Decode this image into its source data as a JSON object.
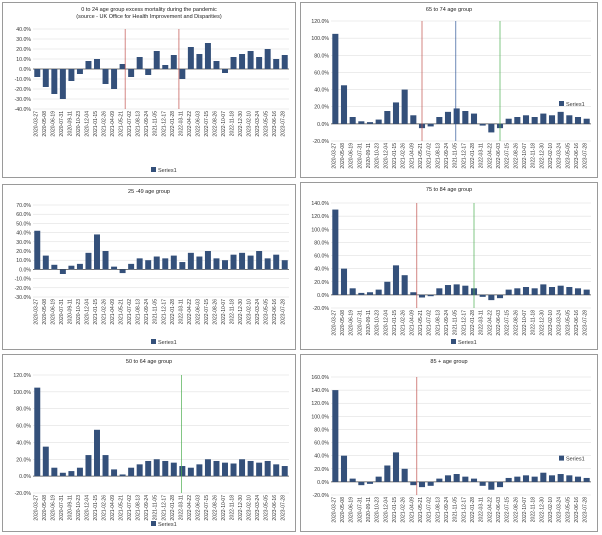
{
  "chart_data": [
    {
      "type": "bar",
      "title": "0 to 24 age group excess mortality during the pandemic",
      "subtitle": "(source - UK Office for Health Improvement and Disparities)",
      "ylim": [
        -40,
        40
      ],
      "ystep": 10,
      "ytick_format": "percent",
      "legend": "bottom",
      "legend_label": "Series1",
      "categories": [
        "2020-03-27",
        "2020-05-08",
        "2020-06-19",
        "2020-07-31",
        "2020-09-11",
        "2020-10-23",
        "2020-12-04",
        "2021-01-15",
        "2021-02-26",
        "2021-04-09",
        "2021-05-21",
        "2021-07-02",
        "2021-08-13",
        "2021-09-24",
        "2021-11-05",
        "2021-12-17",
        "2022-01-28",
        "2022-03-11",
        "2022-04-22",
        "2022-06-03",
        "2022-07-15",
        "2022-08-26",
        "2022-10-07",
        "2022-11-18",
        "2022-12-30",
        "2023-02-10",
        "2023-03-24",
        "2023-05-05",
        "2023-06-16",
        "2023-07-28"
      ],
      "values": [
        -8,
        -18,
        -25,
        -30,
        -12,
        -5,
        8,
        10,
        -15,
        -20,
        5,
        -8,
        12,
        -6,
        18,
        4,
        14,
        -10,
        22,
        15,
        26,
        8,
        -4,
        12,
        15,
        18,
        12,
        20,
        10,
        14
      ]
    },
    {
      "type": "bar",
      "title": "65 to 74 age group",
      "ylim": [
        -20,
        120
      ],
      "ystep": 20,
      "ytick_format": "percent",
      "legend": "right",
      "legend_label": "Series1",
      "categories": [
        "2020-03-27",
        "2020-05-08",
        "2020-06-19",
        "2020-07-31",
        "2020-09-11",
        "2020-10-23",
        "2020-12-04",
        "2021-01-15",
        "2021-02-26",
        "2021-04-09",
        "2021-05-21",
        "2021-07-02",
        "2021-08-13",
        "2021-09-24",
        "2021-11-05",
        "2021-12-17",
        "2022-01-28",
        "2022-03-11",
        "2022-04-22",
        "2022-06-03",
        "2022-07-15",
        "2022-08-26",
        "2022-10-07",
        "2022-11-18",
        "2022-12-30",
        "2023-02-10",
        "2023-03-24",
        "2023-05-05",
        "2023-06-16",
        "2023-07-28"
      ],
      "values": [
        105,
        45,
        8,
        3,
        2,
        5,
        15,
        25,
        40,
        10,
        -5,
        -3,
        8,
        14,
        18,
        15,
        12,
        -2,
        -10,
        -5,
        6,
        8,
        10,
        8,
        12,
        10,
        14,
        10,
        8,
        6
      ]
    },
    {
      "type": "bar",
      "title": "25 -49 age group",
      "ylim": [
        -30,
        70
      ],
      "ystep": 10,
      "ytick_format": "percent",
      "legend": "bottom",
      "legend_label": "Series1",
      "categories": [
        "2020-03-27",
        "2020-05-08",
        "2020-06-19",
        "2020-07-31",
        "2020-09-11",
        "2020-10-23",
        "2020-12-04",
        "2021-01-15",
        "2021-02-26",
        "2021-04-09",
        "2021-05-21",
        "2021-07-02",
        "2021-08-13",
        "2021-09-24",
        "2021-11-05",
        "2021-12-17",
        "2022-01-28",
        "2022-03-11",
        "2022-04-22",
        "2022-06-03",
        "2022-07-15",
        "2022-08-26",
        "2022-10-07",
        "2022-11-18",
        "2022-12-30",
        "2023-02-10",
        "2023-03-24",
        "2023-05-05",
        "2023-06-16",
        "2023-07-28"
      ],
      "values": [
        42,
        15,
        5,
        -5,
        4,
        6,
        18,
        38,
        20,
        3,
        -4,
        6,
        12,
        10,
        14,
        12,
        15,
        8,
        18,
        14,
        20,
        12,
        10,
        16,
        18,
        15,
        20,
        12,
        16,
        10
      ]
    },
    {
      "type": "bar",
      "title": "75 to 84 age group",
      "ylim": [
        -20,
        140
      ],
      "ystep": 20,
      "ytick_format": "percent",
      "legend": "bottom",
      "legend_label": "Series1",
      "categories": [
        "2020-03-27",
        "2020-05-08",
        "2020-06-19",
        "2020-07-31",
        "2020-09-11",
        "2020-10-23",
        "2020-12-04",
        "2021-01-15",
        "2021-02-26",
        "2021-04-09",
        "2021-05-21",
        "2021-07-02",
        "2021-08-13",
        "2021-09-24",
        "2021-11-05",
        "2021-12-17",
        "2022-01-28",
        "2022-03-11",
        "2022-04-22",
        "2022-06-03",
        "2022-07-15",
        "2022-08-26",
        "2022-10-07",
        "2022-11-18",
        "2022-12-30",
        "2023-02-10",
        "2023-03-24",
        "2023-05-05",
        "2023-06-16",
        "2023-07-28"
      ],
      "values": [
        130,
        40,
        10,
        3,
        4,
        8,
        20,
        45,
        30,
        4,
        -4,
        -2,
        10,
        15,
        16,
        14,
        10,
        -3,
        -8,
        -5,
        8,
        10,
        12,
        10,
        16,
        12,
        14,
        12,
        10,
        8
      ]
    },
    {
      "type": "bar",
      "title": "50 to 64 age group",
      "ylim": [
        -20,
        120
      ],
      "ystep": 20,
      "ytick_format": "percent",
      "legend": "bottom",
      "legend_label": "Series1",
      "categories": [
        "2020-03-27",
        "2020-05-08",
        "2020-06-19",
        "2020-07-31",
        "2020-09-11",
        "2020-10-23",
        "2020-12-04",
        "2021-01-15",
        "2021-02-26",
        "2021-04-09",
        "2021-05-21",
        "2021-07-02",
        "2021-08-13",
        "2021-09-24",
        "2021-11-05",
        "2021-12-17",
        "2022-01-28",
        "2022-03-11",
        "2022-04-22",
        "2022-06-03",
        "2022-07-15",
        "2022-08-26",
        "2022-10-07",
        "2022-11-18",
        "2022-12-30",
        "2023-02-10",
        "2023-03-24",
        "2023-05-05",
        "2023-06-16",
        "2023-07-28"
      ],
      "values": [
        105,
        35,
        10,
        4,
        6,
        10,
        25,
        55,
        25,
        8,
        2,
        10,
        14,
        18,
        20,
        18,
        16,
        12,
        10,
        14,
        20,
        18,
        16,
        15,
        20,
        18,
        16,
        18,
        14,
        12
      ]
    },
    {
      "type": "bar",
      "title": "85 + age group",
      "ylim": [
        -20,
        160
      ],
      "ystep": 20,
      "ytick_format": "percent",
      "legend": "right",
      "legend_label": "Series1",
      "categories": [
        "2020-03-27",
        "2020-05-08",
        "2020-06-19",
        "2020-07-31",
        "2020-09-11",
        "2020-10-23",
        "2020-12-04",
        "2021-01-15",
        "2021-02-26",
        "2021-04-09",
        "2021-05-21",
        "2021-07-02",
        "2021-08-13",
        "2021-09-24",
        "2021-11-05",
        "2021-12-17",
        "2022-01-28",
        "2022-03-11",
        "2022-04-22",
        "2022-06-03",
        "2022-07-15",
        "2022-08-26",
        "2022-10-07",
        "2022-11-18",
        "2022-12-30",
        "2023-02-10",
        "2023-03-24",
        "2023-05-05",
        "2023-06-16",
        "2023-07-28"
      ],
      "values": [
        140,
        40,
        5,
        -5,
        -3,
        8,
        25,
        45,
        20,
        -5,
        -8,
        -6,
        5,
        10,
        12,
        8,
        5,
        -6,
        -12,
        -8,
        6,
        8,
        10,
        8,
        14,
        10,
        12,
        10,
        8,
        6
      ]
    }
  ],
  "colors": {
    "bar": "#34507a",
    "ref_red": "#c0504d",
    "ref_green": "#4caf50",
    "ref_blue": "#2f5597"
  }
}
